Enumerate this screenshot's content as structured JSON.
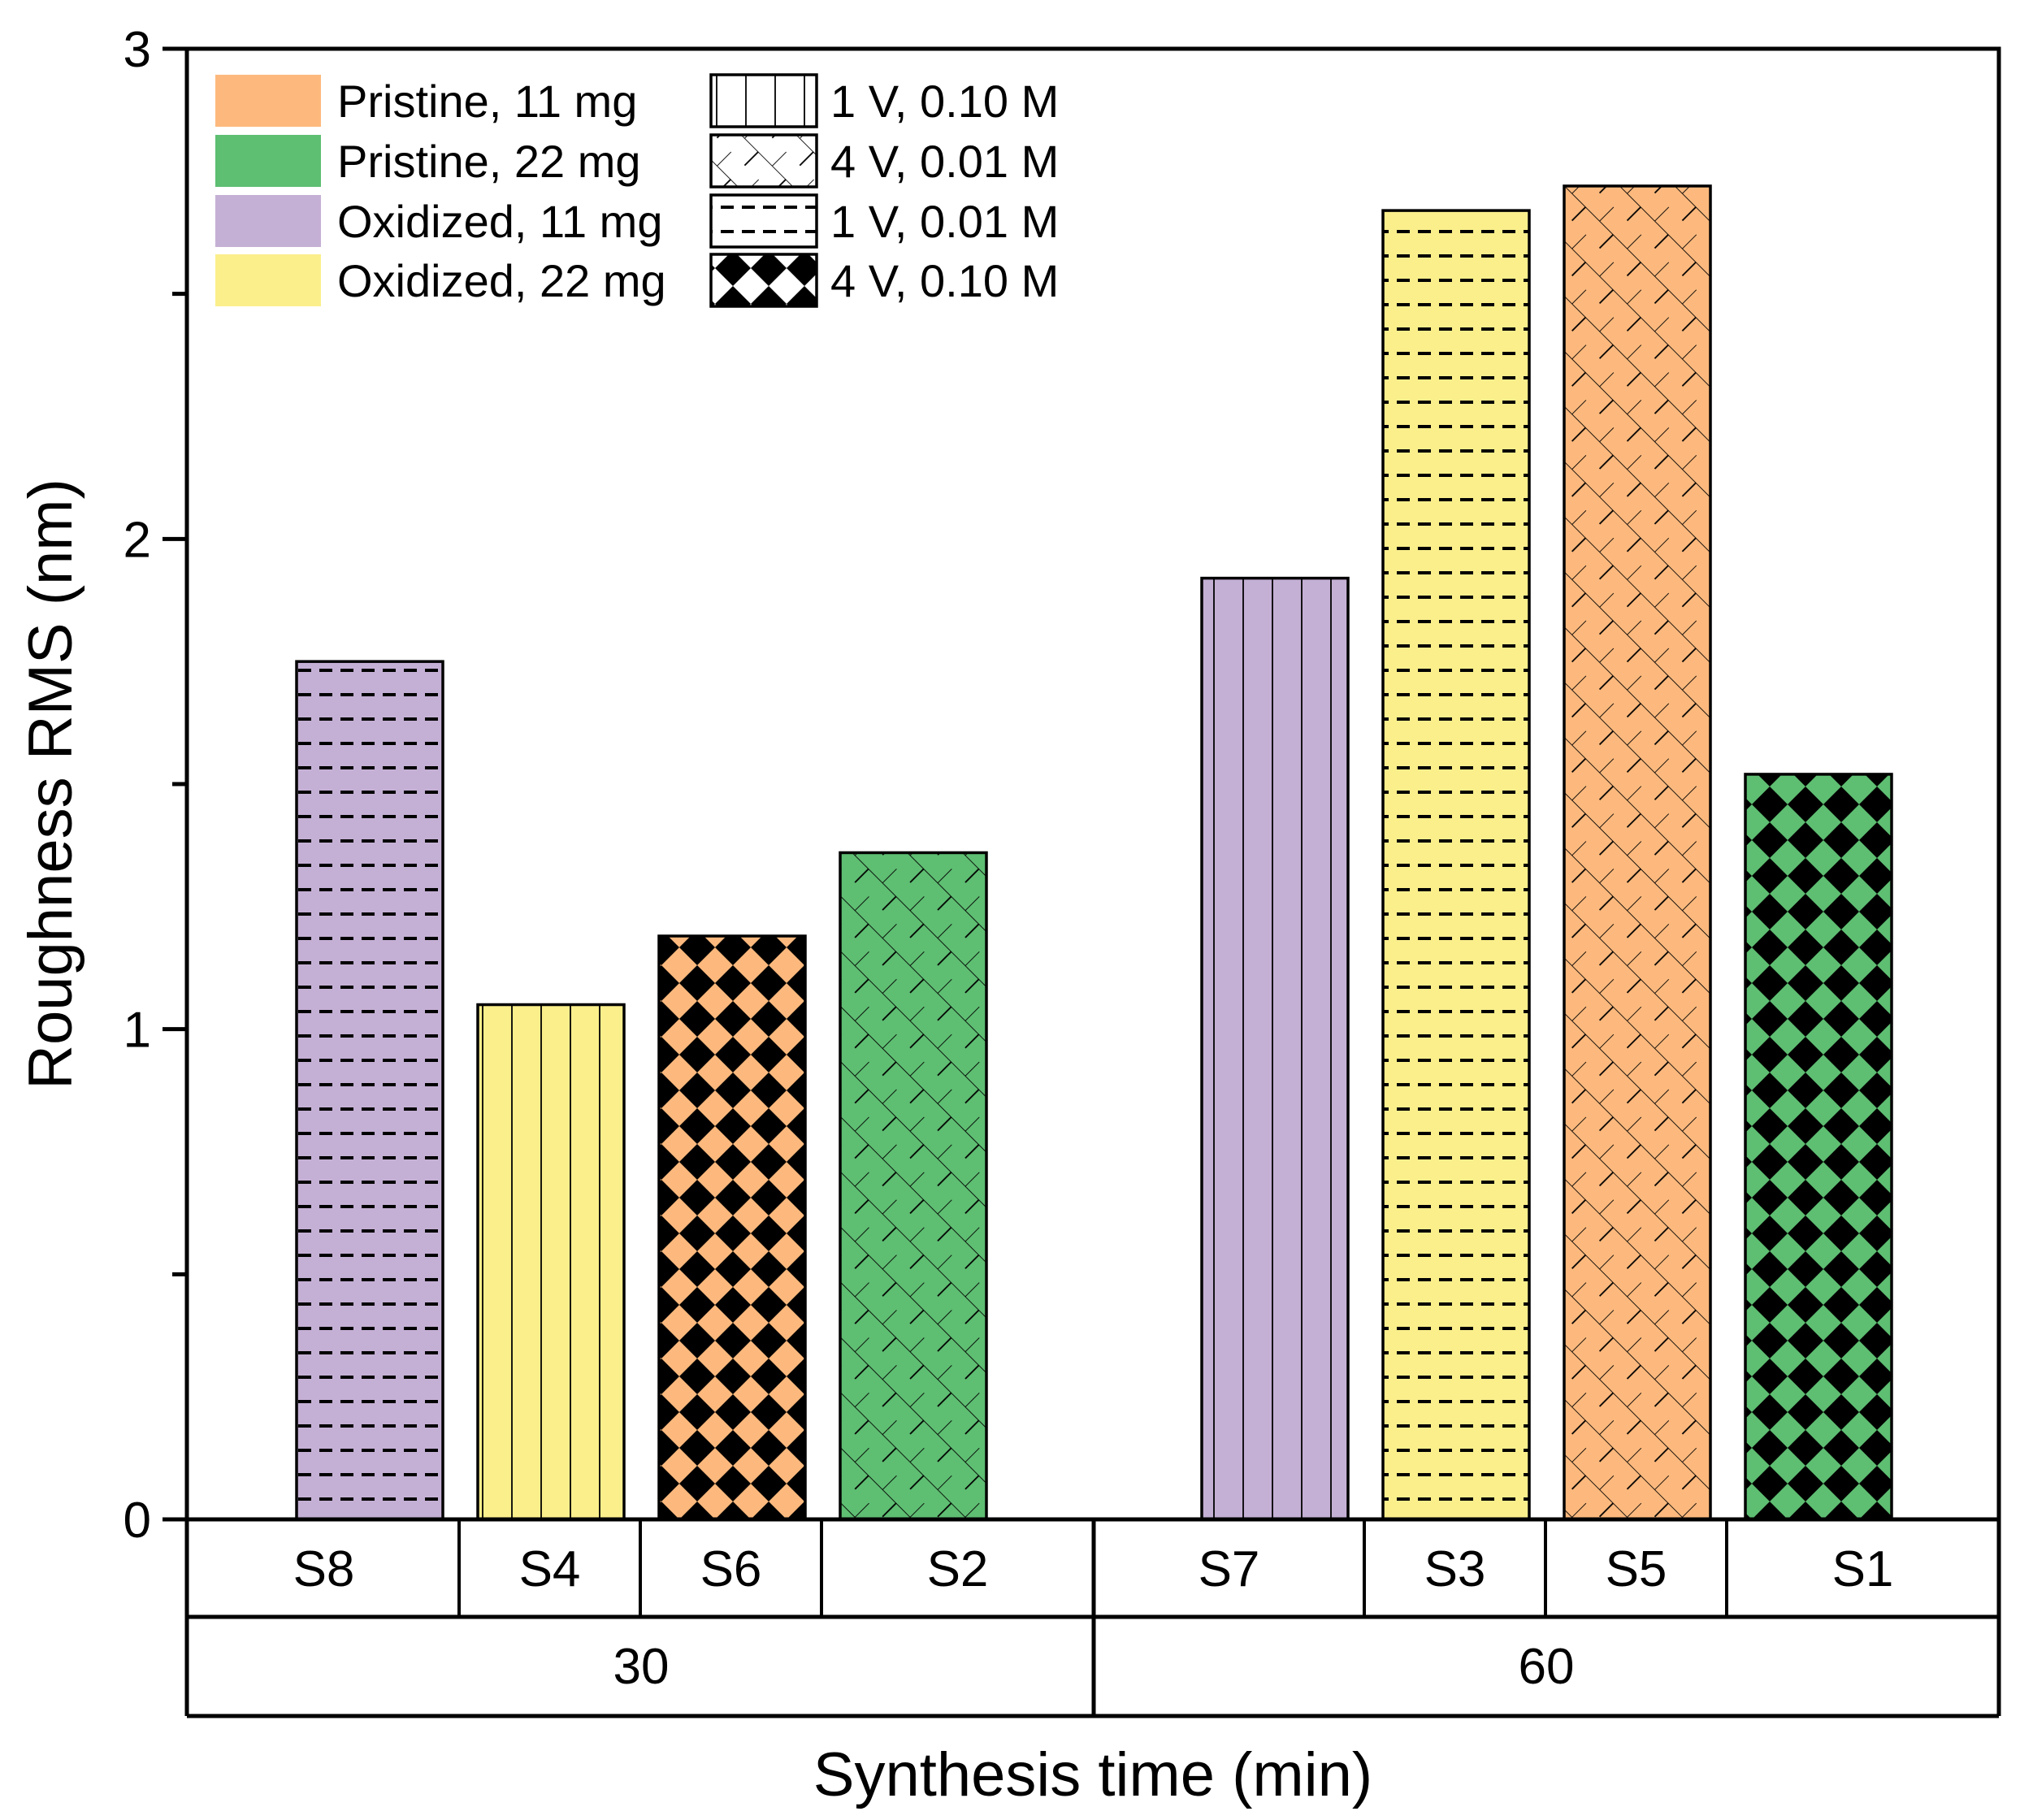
{
  "chart_data": {
    "type": "bar",
    "xlabel": "Synthesis time (min)",
    "ylabel": "Roughness RMS (nm)",
    "ylim": [
      0,
      3
    ],
    "y_ticks": [
      "0",
      "1",
      "2",
      "3"
    ],
    "groups": [
      {
        "label": "30",
        "bars": [
          {
            "label": "S8",
            "value": 1.75,
            "fill": "Oxidized, 11 mg",
            "pattern": "1 V, 0.01 M"
          },
          {
            "label": "S4",
            "value": 1.05,
            "fill": "Oxidized, 22 mg",
            "pattern": "1 V, 0.10 M"
          },
          {
            "label": "S6",
            "value": 1.19,
            "fill": "Pristine, 11 mg",
            "pattern": "4 V, 0.10 M"
          },
          {
            "label": "S2",
            "value": 1.36,
            "fill": "Pristine, 22 mg",
            "pattern": "4 V, 0.01 M"
          }
        ]
      },
      {
        "label": "60",
        "bars": [
          {
            "label": "S7",
            "value": 1.92,
            "fill": "Oxidized, 11 mg",
            "pattern": "1 V, 0.10 M"
          },
          {
            "label": "S3",
            "value": 2.67,
            "fill": "Oxidized, 22 mg",
            "pattern": "1 V, 0.01 M"
          },
          {
            "label": "S5",
            "value": 2.72,
            "fill": "Pristine, 11 mg",
            "pattern": "4 V, 0.01 M"
          },
          {
            "label": "S1",
            "value": 1.52,
            "fill": "Pristine, 22 mg",
            "pattern": "4 V, 0.10 M"
          }
        ]
      }
    ],
    "legend": {
      "placement": "top-left",
      "fills": [
        {
          "label": "Pristine, 11 mg",
          "color": "#fdb97d"
        },
        {
          "label": "Pristine, 22 mg",
          "color": "#5ebe72"
        },
        {
          "label": "Oxidized, 11 mg",
          "color": "#c5b0d5"
        },
        {
          "label": "Oxidized, 22 mg",
          "color": "#fbef8c"
        }
      ],
      "patterns": [
        {
          "label": "1 V, 0.10 M",
          "pattern": "vertical-lines"
        },
        {
          "label": "4 V, 0.01 M",
          "pattern": "diagonal-crosshatch"
        },
        {
          "label": "1 V, 0.01 M",
          "pattern": "dashes"
        },
        {
          "label": "4 V, 0.10 M",
          "pattern": "checkerboard"
        }
      ]
    },
    "grid": false
  }
}
